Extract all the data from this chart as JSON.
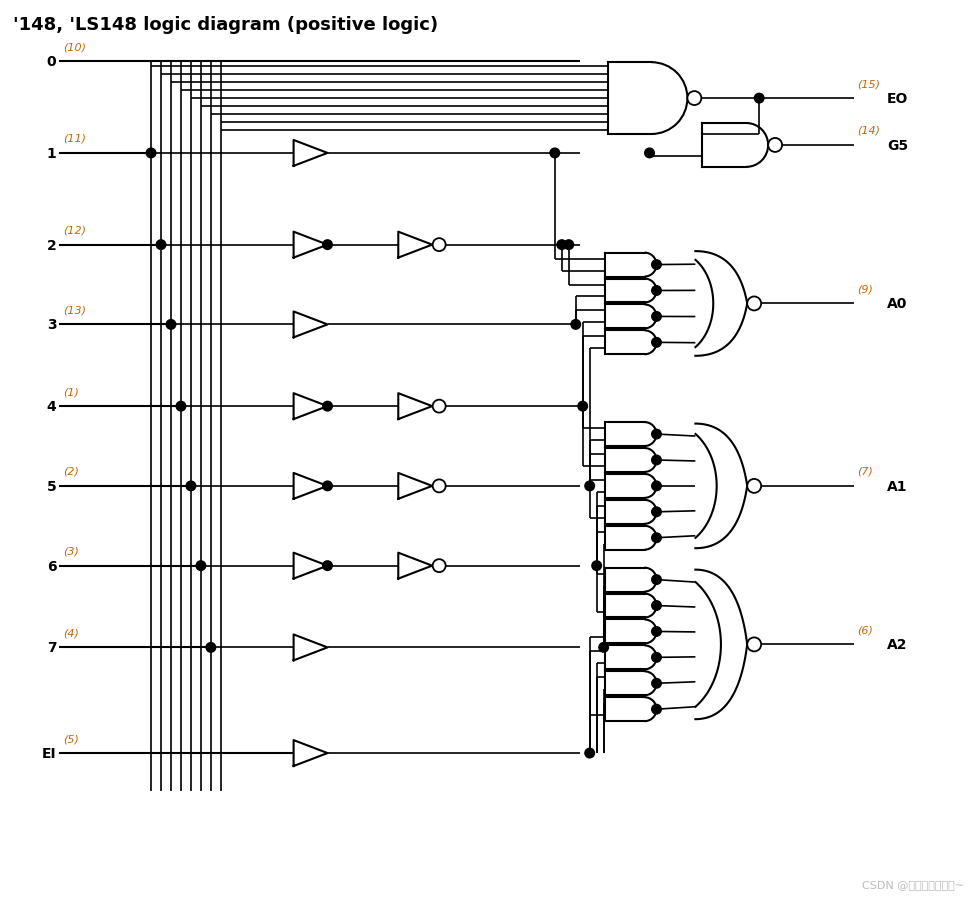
{
  "title": "'148, 'LS148 logic diagram (positive logic)",
  "title_fontsize": 13,
  "title_bold": true,
  "bg_color": "#ffffff",
  "line_color": "#000000",
  "label_color": "#cc6600",
  "text_color": "#000000",
  "input_labels": [
    "0",
    "1",
    "2",
    "3",
    "4",
    "5",
    "6",
    "7",
    "EI"
  ],
  "input_pins": [
    "(10)",
    "(11)",
    "(12)",
    "(13)",
    "(1)",
    "(2)",
    "(3)",
    "(4)",
    "(5)"
  ],
  "output_labels": [
    "EO",
    "G5",
    "A0",
    "A1",
    "A2"
  ],
  "output_pins": [
    "(15)",
    "(14)",
    "(9)",
    "(7)",
    "(6)"
  ]
}
